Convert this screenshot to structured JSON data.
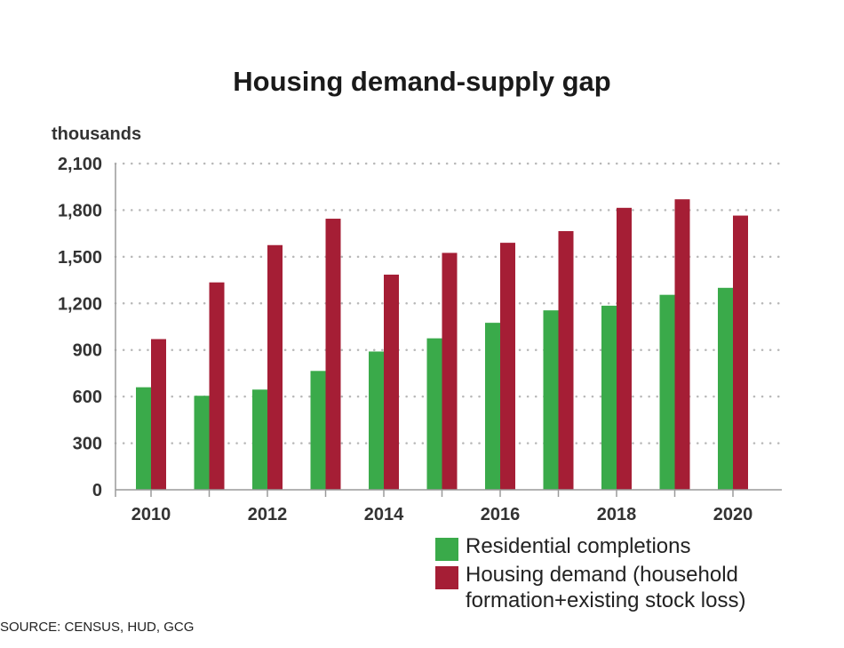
{
  "chart_data": {
    "type": "bar",
    "title": "Housing demand-supply gap",
    "ylabel": "thousands",
    "xlabel": "",
    "x": [
      2010,
      2011,
      2012,
      2013,
      2014,
      2015,
      2016,
      2017,
      2018,
      2019,
      2020
    ],
    "x_tick_labels": [
      "2010",
      "2012",
      "2014",
      "2016",
      "2018",
      "2020"
    ],
    "y_ticks": [
      0,
      300,
      600,
      900,
      1200,
      1500,
      1800,
      2100
    ],
    "y_tick_labels": [
      "0",
      "300",
      "600",
      "900",
      "1,200",
      "1,500",
      "1,800",
      "2,100"
    ],
    "ylim": [
      0,
      2100
    ],
    "grid": "horizontal dotted",
    "legend_position": "bottom-right",
    "series": [
      {
        "name": "Residential completions",
        "color": "#3aaa4a",
        "values": [
          660,
          605,
          645,
          765,
          890,
          975,
          1075,
          1155,
          1185,
          1255,
          1300
        ]
      },
      {
        "name": "Housing demand (household formation+existing stock loss)",
        "name_lines": [
          "Housing demand (household",
          "formation+existing stock loss)"
        ],
        "color": "#a51e35",
        "values": [
          970,
          1335,
          1575,
          1745,
          1385,
          1525,
          1590,
          1665,
          1815,
          1870,
          1765
        ]
      }
    ]
  },
  "source": "SOURCE: CENSUS, HUD, GCG"
}
